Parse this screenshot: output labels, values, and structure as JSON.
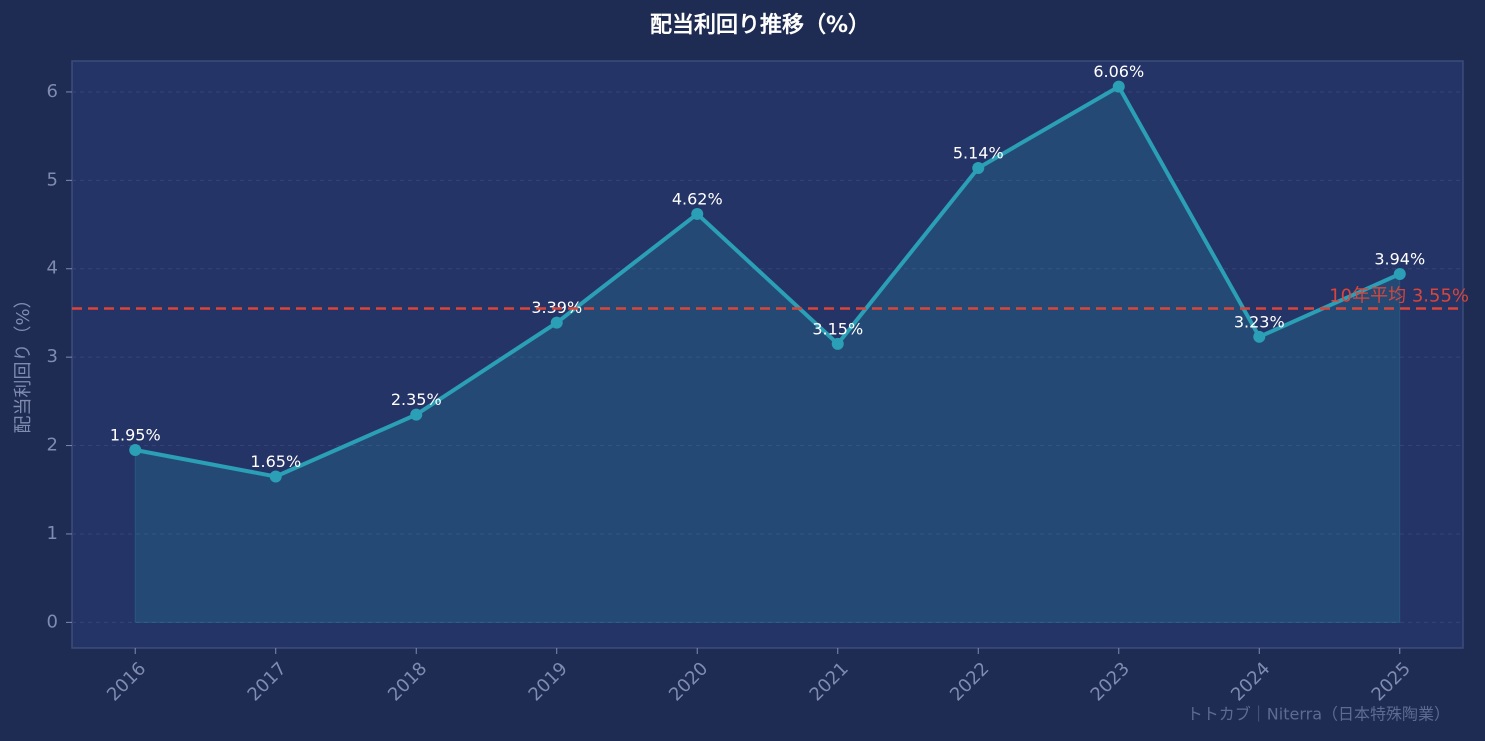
{
  "chart_data": {
    "type": "line",
    "title": "配当利回り推移（%）",
    "ylabel": "配当利回り（%）",
    "x": [
      2016,
      2017,
      2018,
      2019,
      2020,
      2021,
      2022,
      2023,
      2024,
      2025
    ],
    "xlim": [
      2015.55,
      2025.45
    ],
    "xticks": [
      2016,
      2017,
      2018,
      2019,
      2020,
      2021,
      2022,
      2023,
      2024,
      2025
    ],
    "ylim": [
      -0.29,
      6.35
    ],
    "yticks": [
      0,
      1,
      2,
      3,
      4,
      5,
      6
    ],
    "grid": true,
    "series": [
      {
        "name": "配当利回り",
        "color": "#2a9fb5",
        "values": [
          1.95,
          1.65,
          2.35,
          3.39,
          4.62,
          3.15,
          5.14,
          6.06,
          3.23,
          3.94
        ],
        "value_labels": [
          "1.95%",
          "1.65%",
          "2.35%",
          "3.39%",
          "4.62%",
          "3.15%",
          "5.14%",
          "6.06%",
          "3.23%",
          "3.94%"
        ]
      }
    ],
    "average": {
      "value": 3.55,
      "label": "10年平均 3.55%",
      "color": "#d9453a"
    },
    "watermark": "トトカブ｜Niterra（日本特殊陶業）"
  }
}
